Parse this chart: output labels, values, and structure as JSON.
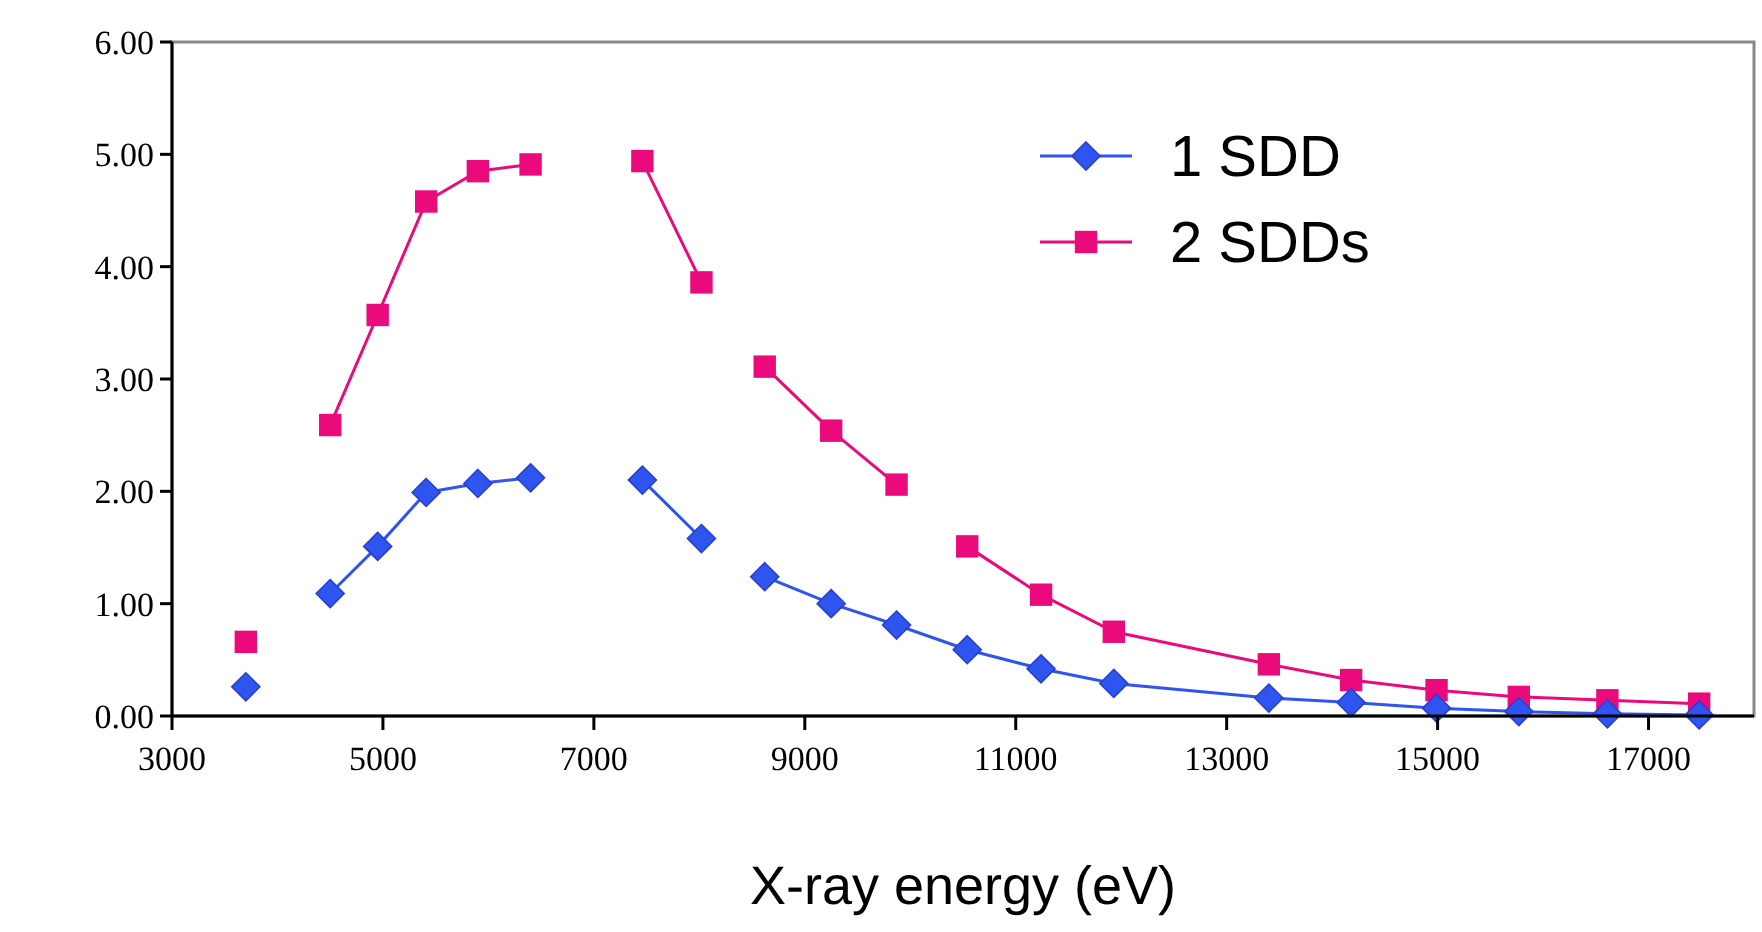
{
  "chart_data": {
    "type": "line",
    "xlabel": "X-ray energy (eV)",
    "xlim": [
      3000,
      18000
    ],
    "xticks": [
      3000,
      5000,
      7000,
      9000,
      11000,
      13000,
      15000,
      17000
    ],
    "ylim": [
      0,
      6
    ],
    "yticks": [
      {
        "value": 0,
        "label": "0.00"
      },
      {
        "value": 1,
        "label": "1.00"
      },
      {
        "value": 2,
        "label": "2.00"
      },
      {
        "value": 3,
        "label": "3.00"
      },
      {
        "value": 4,
        "label": "4.00"
      },
      {
        "value": 5,
        "label": "5.00"
      },
      {
        "value": 6,
        "label": "6.00"
      }
    ],
    "grid": false,
    "legend": "top right",
    "line_style": "solid",
    "series": [
      {
        "name": "1 SDD",
        "color": "#2e55f0",
        "marker": "diamond",
        "x": [
          3700,
          4100,
          4500,
          4950,
          5410,
          5900,
          6400,
          6900,
          7460,
          8020,
          8300,
          8620,
          9250,
          9870,
          10540,
          11240,
          11930,
          13400,
          14180,
          14990,
          15770,
          16610,
          17480
        ],
        "values": [
          0.26,
          null,
          1.09,
          1.51,
          1.99,
          2.07,
          2.12,
          null,
          2.1,
          1.58,
          null,
          1.24,
          1.0,
          0.81,
          0.59,
          0.42,
          0.29,
          0.16,
          0.12,
          0.07,
          0.04,
          0.02,
          0.01
        ]
      },
      {
        "name": "2 SDDs",
        "color": "#ea0a7c",
        "marker": "square",
        "x": [
          3700,
          4100,
          4500,
          4950,
          5410,
          5900,
          6400,
          6900,
          7460,
          8020,
          8300,
          8620,
          9250,
          9870,
          10200,
          10540,
          11240,
          11930,
          13400,
          14180,
          14990,
          15770,
          16610,
          17480
        ],
        "values": [
          0.66,
          null,
          2.59,
          3.57,
          4.58,
          4.85,
          4.91,
          null,
          4.94,
          3.86,
          null,
          3.11,
          2.54,
          2.06,
          null,
          1.51,
          1.08,
          0.75,
          0.46,
          0.32,
          0.23,
          0.17,
          0.14,
          0.11
        ]
      }
    ]
  }
}
